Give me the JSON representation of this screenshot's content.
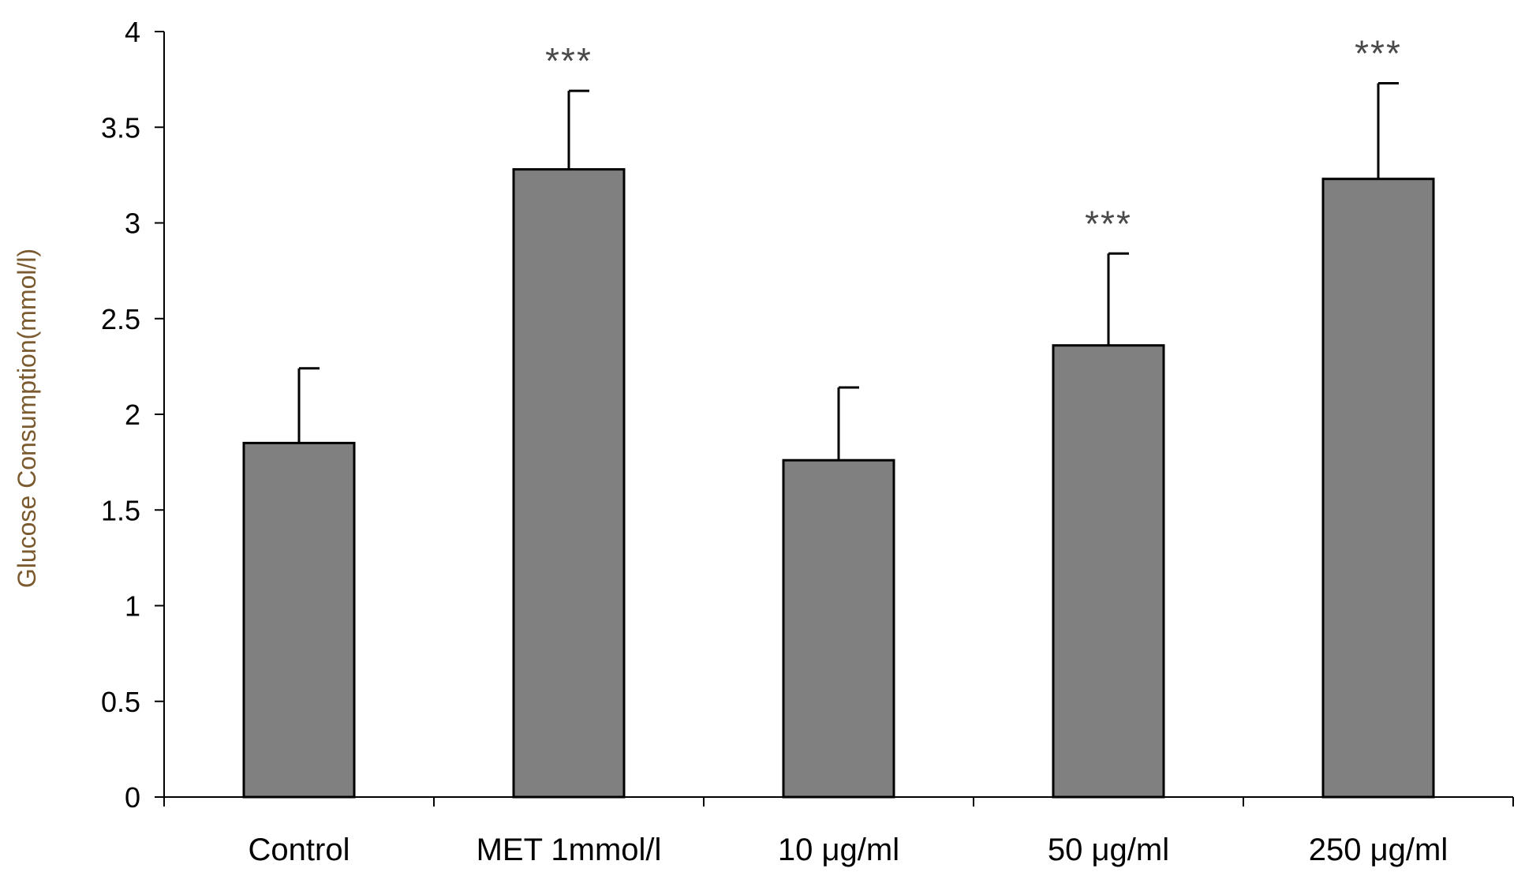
{
  "chart_data": {
    "type": "bar",
    "title": "",
    "xlabel": "",
    "ylabel": "Glucose Consumption(mmol/l)",
    "ylim": [
      0,
      4
    ],
    "yticks": [
      0,
      0.5,
      1,
      1.5,
      2,
      2.5,
      3,
      3.5,
      4
    ],
    "ytick_labels": [
      "0",
      "0.5",
      "1",
      "1.5",
      "2",
      "2.5",
      "3",
      "3.5",
      "4"
    ],
    "categories": [
      "Control",
      "MET 1mmol/l",
      "10 μg/ml",
      "50 μg/ml",
      "250 μg/ml"
    ],
    "values": [
      1.85,
      3.28,
      1.76,
      2.36,
      3.23
    ],
    "errors": [
      0.39,
      0.41,
      0.38,
      0.48,
      0.5
    ],
    "significance": [
      "",
      "***",
      "",
      "***",
      "***"
    ],
    "grid": false,
    "legend": "none"
  },
  "colors": {
    "bar_fill": "#808080",
    "bar_stroke": "#000000",
    "axis": "#000000",
    "ylabel_color": "#7a5a2e",
    "significance_color": "#4a4a4a"
  }
}
